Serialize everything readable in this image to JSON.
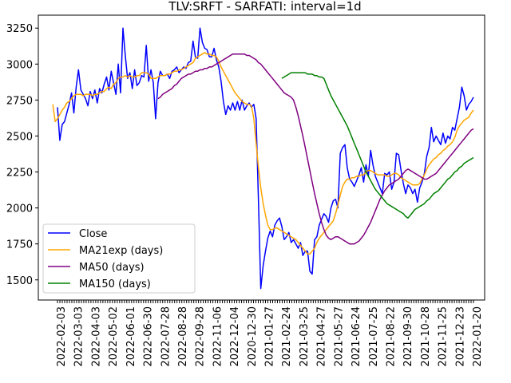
{
  "chart_data": {
    "type": "line",
    "title": "TLV:SRFT - SARFATI: interval=1d",
    "xlabel": "",
    "ylabel": "",
    "ylim": [
      1360,
      3340
    ],
    "yticks": [
      1500,
      1750,
      2000,
      2250,
      2500,
      2750,
      3000,
      3250
    ],
    "ytick_labels": [
      "1500",
      "1750",
      "2000",
      "2250",
      "2500",
      "2750",
      "3000",
      "3250"
    ],
    "xtick_labels": [
      "2022-02-03",
      "2022-03-03",
      "2022-04-03",
      "2022-05-02",
      "2022-06-01",
      "2022-06-30",
      "2022-07-28",
      "2022-08-28",
      "2022-09-28",
      "2022-11-06",
      "2022-12-04",
      "2020-12-30",
      "2021-01-27",
      "2021-02-24",
      "2021-03-25",
      "2021-04-27",
      "2021-05-27",
      "2021-06-24",
      "2021-07-25",
      "2021-08-22",
      "2021-09-30",
      "2021-10-28",
      "2021-11-25",
      "2021-12-23",
      "2022-01-20"
    ],
    "legend_position": "lower-left",
    "grid": false,
    "series": [
      {
        "name": "Close",
        "color": "#0000ff",
        "values": [
          2700,
          2470,
          2580,
          2600,
          2660,
          2720,
          2800,
          2660,
          2840,
          2960,
          2820,
          2790,
          2760,
          2710,
          2810,
          2760,
          2820,
          2730,
          2830,
          2800,
          2860,
          2910,
          2820,
          2950,
          2870,
          2790,
          3000,
          2800,
          3250,
          3060,
          2900,
          2940,
          2830,
          2960,
          2850,
          2870,
          2920,
          2910,
          3130,
          2880,
          2960,
          2870,
          2620,
          2870,
          2950,
          2920,
          2920,
          2930,
          2900,
          2950,
          2960,
          2980,
          2940,
          2960,
          2980,
          2970,
          3010,
          3020,
          3160,
          3050,
          3040,
          3250,
          3150,
          3110,
          3100,
          3050,
          3050,
          3110,
          3030,
          2980,
          2880,
          2740,
          2650,
          2710,
          2680,
          2730,
          2680,
          2740,
          2680,
          2750,
          2680,
          2710,
          2730,
          2700,
          2720,
          2620,
          2050,
          1440,
          1600,
          1700,
          1790,
          1840,
          1800,
          1880,
          1910,
          1930,
          1870,
          1780,
          1800,
          1830,
          1760,
          1780,
          1750,
          1720,
          1760,
          1670,
          1700,
          1700,
          1560,
          1540,
          1780,
          1800,
          1880,
          1920,
          1960,
          1940,
          1900,
          2000,
          2050,
          2060,
          2000,
          2380,
          2420,
          2440,
          2280,
          2200,
          2180,
          2150,
          2190,
          2230,
          2280,
          2180,
          2300,
          2220,
          2400,
          2300,
          2220,
          2180,
          2140,
          2100,
          2240,
          2230,
          2250,
          2130,
          2180,
          2380,
          2370,
          2260,
          2170,
          2100,
          2160,
          2140,
          2100,
          2130,
          2040,
          2140,
          2180,
          2240,
          2360,
          2420,
          2560,
          2460,
          2500,
          2470,
          2440,
          2520,
          2450,
          2500,
          2480,
          2560,
          2540,
          2620,
          2700,
          2840,
          2780,
          2680,
          2720,
          2740,
          2770
        ]
      },
      {
        "name": "MA21exp (days)",
        "color": "#ffa500",
        "values": [
          2720,
          2600,
          2620,
          2650,
          2680,
          2700,
          2730,
          2740,
          2760,
          2780,
          2790,
          2790,
          2790,
          2780,
          2790,
          2790,
          2790,
          2780,
          2790,
          2790,
          2800,
          2810,
          2810,
          2830,
          2840,
          2830,
          2860,
          2870,
          2900,
          2910,
          2910,
          2920,
          2910,
          2920,
          2910,
          2910,
          2920,
          2920,
          2940,
          2940,
          2940,
          2930,
          2900,
          2900,
          2900,
          2910,
          2920,
          2920,
          2920,
          2930,
          2930,
          2940,
          2950,
          2950,
          2960,
          2960,
          2970,
          2980,
          2990,
          3000,
          3010,
          3040,
          3050,
          3060,
          3070,
          3080,
          3070,
          3070,
          3060,
          3060,
          3050,
          3020,
          2980,
          2950,
          2920,
          2890,
          2860,
          2830,
          2800,
          2780,
          2760,
          2740,
          2730,
          2720,
          2720,
          2710,
          2620,
          2450,
          2280,
          2140,
          2030,
          1950,
          1880,
          1850,
          1850,
          1860,
          1860,
          1850,
          1840,
          1830,
          1820,
          1810,
          1800,
          1790,
          1780,
          1760,
          1740,
          1720,
          1700,
          1680,
          1680,
          1700,
          1720,
          1760,
          1790,
          1810,
          1830,
          1850,
          1870,
          1890,
          1910,
          1960,
          2020,
          2090,
          2150,
          2180,
          2200,
          2200,
          2210,
          2210,
          2220,
          2220,
          2230,
          2230,
          2250,
          2260,
          2260,
          2250,
          2240,
          2230,
          2230,
          2230,
          2230,
          2220,
          2220,
          2230,
          2240,
          2240,
          2230,
          2210,
          2200,
          2190,
          2180,
          2170,
          2160,
          2160,
          2160,
          2170,
          2200,
          2230,
          2270,
          2300,
          2320,
          2340,
          2350,
          2370,
          2380,
          2400,
          2410,
          2430,
          2440,
          2460,
          2490,
          2540,
          2570,
          2590,
          2610,
          2620,
          2630,
          2660,
          2680
        ]
      },
      {
        "name": "MA50 (days)",
        "color": "#800080",
        "values": [
          2760,
          2770,
          2790,
          2800,
          2810,
          2820,
          2830,
          2850,
          2860,
          2880,
          2900,
          2910,
          2920,
          2930,
          2930,
          2940,
          2950,
          2950,
          2960,
          2960,
          2970,
          2970,
          2980,
          2980,
          2990,
          3000,
          3010,
          3020,
          3030,
          3040,
          3050,
          3060,
          3070,
          3070,
          3070,
          3070,
          3070,
          3070,
          3060,
          3060,
          3050,
          3040,
          3030,
          3010,
          3000,
          2980,
          2960,
          2940,
          2920,
          2900,
          2880,
          2860,
          2840,
          2820,
          2800,
          2790,
          2780,
          2770,
          2750,
          2700,
          2640,
          2570,
          2500,
          2420,
          2340,
          2260,
          2180,
          2100,
          2030,
          1960,
          1900,
          1850,
          1810,
          1790,
          1780,
          1790,
          1800,
          1800,
          1790,
          1780,
          1770,
          1760,
          1750,
          1750,
          1750,
          1760,
          1770,
          1790,
          1810,
          1840,
          1870,
          1900,
          1940,
          1980,
          2020,
          2060,
          2090,
          2120,
          2140,
          2160,
          2170,
          2180,
          2190,
          2200,
          2220,
          2240,
          2260,
          2270,
          2260,
          2250,
          2240,
          2230,
          2220,
          2210,
          2200,
          2200,
          2210,
          2220,
          2230,
          2240,
          2260,
          2280,
          2300,
          2320,
          2340,
          2360,
          2380,
          2400,
          2420,
          2440,
          2460,
          2480,
          2500,
          2520,
          2540,
          2550
        ]
      },
      {
        "name": "MA150 (days)",
        "color": "#008000",
        "values": [
          2900,
          2910,
          2920,
          2930,
          2940,
          2940,
          2940,
          2940,
          2940,
          2940,
          2940,
          2930,
          2930,
          2930,
          2920,
          2920,
          2910,
          2910,
          2900,
          2860,
          2820,
          2780,
          2750,
          2720,
          2690,
          2660,
          2630,
          2600,
          2570,
          2530,
          2490,
          2450,
          2410,
          2370,
          2330,
          2290,
          2250,
          2220,
          2190,
          2160,
          2130,
          2110,
          2090,
          2070,
          2050,
          2030,
          2020,
          2010,
          2000,
          1990,
          1980,
          1970,
          1960,
          1940,
          1930,
          1950,
          1970,
          1990,
          2000,
          2010,
          2020,
          2030,
          2050,
          2060,
          2080,
          2100,
          2110,
          2120,
          2140,
          2160,
          2180,
          2200,
          2210,
          2230,
          2250,
          2260,
          2280,
          2290,
          2310,
          2320,
          2330,
          2340,
          2350
        ]
      }
    ]
  }
}
